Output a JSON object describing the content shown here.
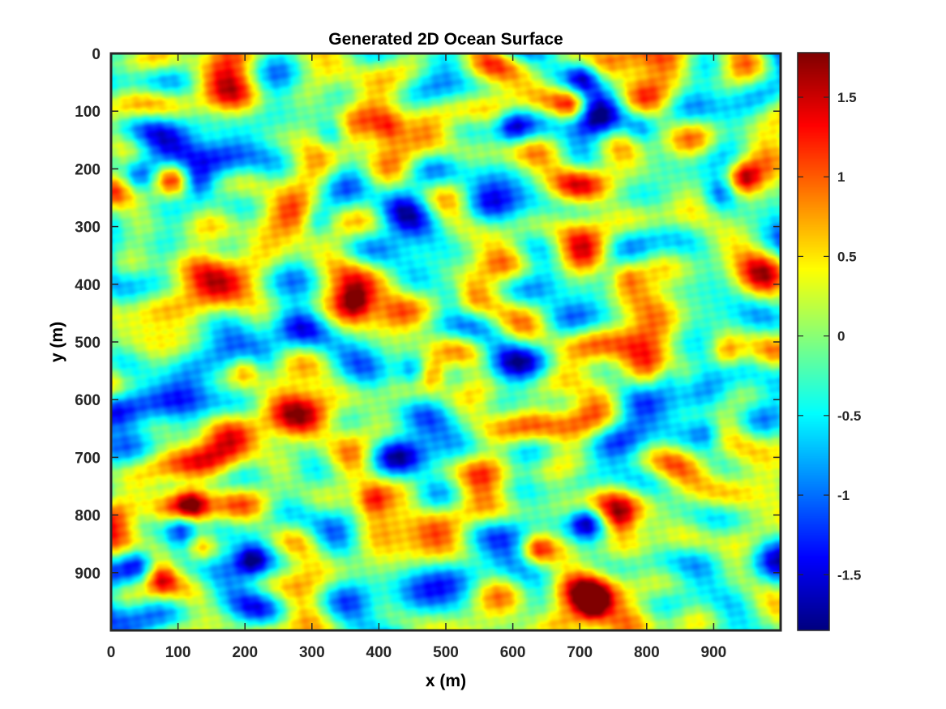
{
  "chart_data": {
    "type": "heatmap",
    "title": "Generated 2D Ocean Surface",
    "xlabel": "x (m)",
    "ylabel": "y (m)",
    "xlim": [
      0,
      1000
    ],
    "ylim": [
      0,
      1000
    ],
    "y_direction": "reversed",
    "x_ticks": [
      0,
      100,
      200,
      300,
      400,
      500,
      600,
      700,
      800,
      900
    ],
    "y_ticks": [
      0,
      100,
      200,
      300,
      400,
      500,
      600,
      700,
      800,
      900
    ],
    "x_tick_labels": [
      "0",
      "100",
      "200",
      "300",
      "400",
      "500",
      "600",
      "700",
      "800",
      "900"
    ],
    "y_tick_labels": [
      "0",
      "100",
      "200",
      "300",
      "400",
      "500",
      "600",
      "700",
      "800",
      "900"
    ],
    "colormap": "jet",
    "color_range": [
      -1.85,
      1.78
    ],
    "colorbar": {
      "ticks": [
        1.5,
        1,
        0.5,
        0,
        -0.5,
        -1,
        -1.5
      ],
      "tick_labels": [
        "1.5",
        "1",
        "0.5",
        "0",
        "-0.5",
        "-1",
        "-1.5"
      ],
      "placement": "right"
    },
    "grid": false,
    "hotspots_high": [
      {
        "x": 90,
        "y": 215,
        "value": 1.6
      },
      {
        "x": 945,
        "y": 215,
        "value": 1.4
      },
      {
        "x": 415,
        "y": 130,
        "value": 1.1
      },
      {
        "x": 690,
        "y": 90,
        "value": 1.5
      },
      {
        "x": 200,
        "y": 545,
        "value": 1.3
      },
      {
        "x": 480,
        "y": 555,
        "value": 1.5
      },
      {
        "x": 365,
        "y": 430,
        "value": 1.2
      },
      {
        "x": 120,
        "y": 780,
        "value": 1.3
      },
      {
        "x": 135,
        "y": 855,
        "value": 1.4
      },
      {
        "x": 75,
        "y": 910,
        "value": 1.5
      },
      {
        "x": 720,
        "y": 955,
        "value": 1.6
      },
      {
        "x": 760,
        "y": 810,
        "value": 1.2
      },
      {
        "x": 635,
        "y": 860,
        "value": 1.3
      },
      {
        "x": 920,
        "y": 520,
        "value": 1.2
      },
      {
        "x": 390,
        "y": 775,
        "value": 1.2
      },
      {
        "x": 770,
        "y": 385,
        "value": 1.1
      }
    ],
    "hotspots_low": [
      {
        "x": 330,
        "y": 140,
        "value": -1.3
      },
      {
        "x": 705,
        "y": 40,
        "value": -1.4
      },
      {
        "x": 130,
        "y": 225,
        "value": -1.4
      },
      {
        "x": 40,
        "y": 215,
        "value": -1.3
      },
      {
        "x": 710,
        "y": 810,
        "value": -1.6
      },
      {
        "x": 105,
        "y": 820,
        "value": -1.5
      },
      {
        "x": 40,
        "y": 880,
        "value": -1.3
      },
      {
        "x": 450,
        "y": 550,
        "value": -1.2
      },
      {
        "x": 210,
        "y": 880,
        "value": -1.2
      },
      {
        "x": 910,
        "y": 240,
        "value": -1.2
      },
      {
        "x": 830,
        "y": 560,
        "value": -1.2
      },
      {
        "x": 600,
        "y": 130,
        "value": -1.1
      },
      {
        "x": 310,
        "y": 290,
        "value": -1.1
      },
      {
        "x": 890,
        "y": 655,
        "value": -1.1
      },
      {
        "x": 510,
        "y": 420,
        "value": -1.0
      },
      {
        "x": 790,
        "y": 130,
        "value": -1.0
      }
    ]
  }
}
